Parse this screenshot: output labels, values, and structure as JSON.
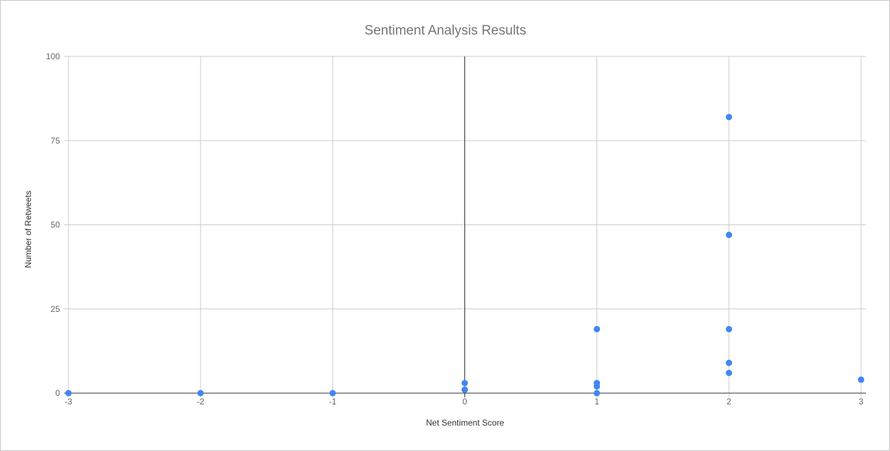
{
  "chart_data": {
    "type": "scatter",
    "title": "Sentiment Analysis Results",
    "xlabel": "Net Sentiment Score",
    "ylabel": "Number of Retweets",
    "xlim": [
      -3,
      3
    ],
    "ylim": [
      0,
      100
    ],
    "x_ticks": [
      "-3",
      "-2",
      "-1",
      "0",
      "1",
      "2",
      "3"
    ],
    "y_ticks": [
      "0",
      "25",
      "50",
      "75",
      "100"
    ],
    "grid": true,
    "legend": "none",
    "colors": {
      "points": "#4285f4",
      "grid": "#cccccc",
      "axis": "#333333"
    },
    "points": [
      {
        "x": -3,
        "y": 0
      },
      {
        "x": -2,
        "y": 0
      },
      {
        "x": -1,
        "y": 0
      },
      {
        "x": 0,
        "y": 3
      },
      {
        "x": 0,
        "y": 1
      },
      {
        "x": 0,
        "y": 1
      },
      {
        "x": 1,
        "y": 19
      },
      {
        "x": 1,
        "y": 3
      },
      {
        "x": 1,
        "y": 2
      },
      {
        "x": 1,
        "y": 0
      },
      {
        "x": 2,
        "y": 82
      },
      {
        "x": 2,
        "y": 47
      },
      {
        "x": 2,
        "y": 19
      },
      {
        "x": 2,
        "y": 9
      },
      {
        "x": 2,
        "y": 6
      },
      {
        "x": 3,
        "y": 4
      }
    ]
  }
}
